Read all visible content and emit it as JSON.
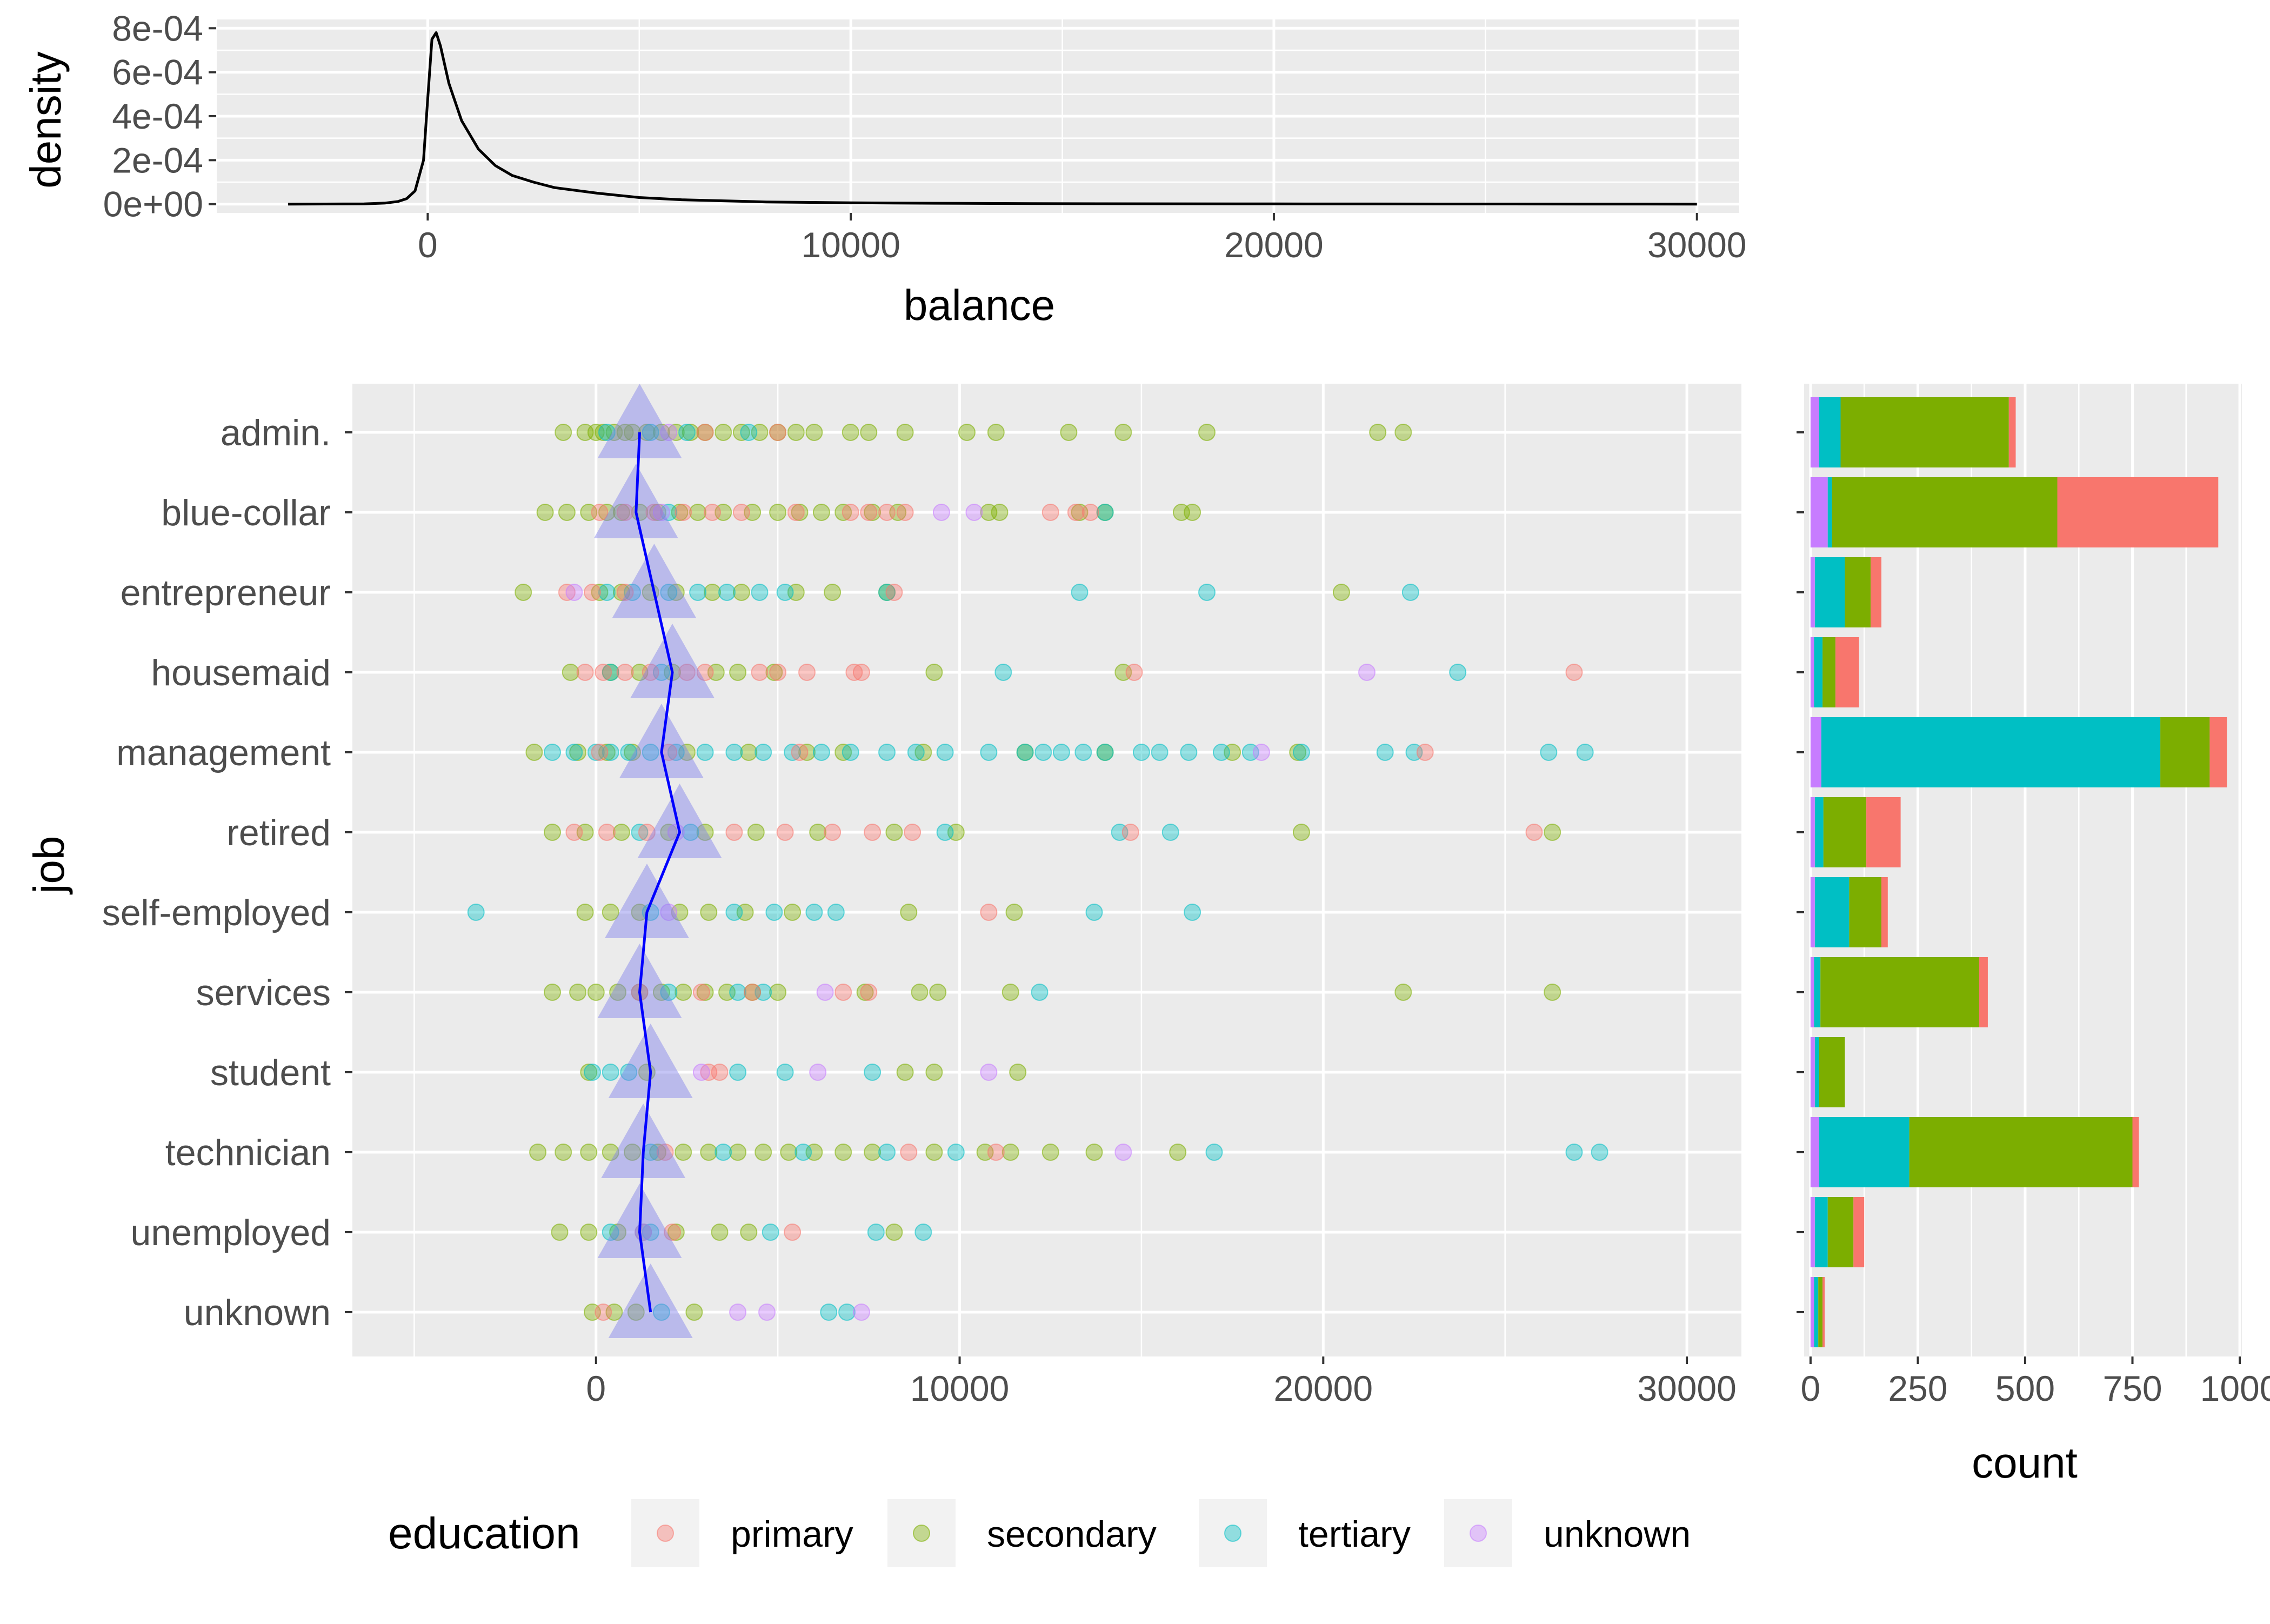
{
  "colors": {
    "panel_bg": "#EBEBEB",
    "grid": "#FFFFFF",
    "axis_text": "#4D4D4D",
    "title_text": "#000000",
    "mean_line": "#0000FF",
    "mean_marker": "#7F7FEA",
    "education": {
      "primary": "#F8766D",
      "secondary": "#7CAE00",
      "tertiary": "#00BFC4",
      "unknown": "#C77CFF"
    }
  },
  "chart_data": [
    {
      "id": "density",
      "type": "line",
      "xlabel": "balance",
      "ylabel": "density",
      "xlim": [
        -5000,
        31000
      ],
      "ylim": [
        0,
        0.0008
      ],
      "x_ticks": [
        0,
        10000,
        20000,
        30000
      ],
      "x_tick_labels": [
        "0",
        "10000",
        "20000",
        "30000"
      ],
      "y_ticks": [
        0,
        0.0002,
        0.0004,
        0.0006,
        0.0008
      ],
      "y_tick_labels": [
        "0e+00",
        "2e-04",
        "4e-04",
        "6e-04",
        "8e-04"
      ],
      "grid": true,
      "series": [
        {
          "x": [
            -3300,
            -1500,
            -1000,
            -700,
            -500,
            -300,
            -100,
            0,
            100,
            200,
            300,
            500,
            800,
            1200,
            1600,
            2000,
            2500,
            3000,
            4000,
            5000,
            6000,
            8000,
            10000,
            12000,
            15000,
            20000,
            25000,
            30000
          ],
          "y": [
            0,
            1e-06,
            5e-06,
            1.2e-05,
            2.5e-05,
            6e-05,
            0.0002,
            0.00048,
            0.00075,
            0.00078,
            0.00072,
            0.00055,
            0.00038,
            0.00025,
            0.000175,
            0.00013,
            0.0001,
            7.5e-05,
            5e-05,
            3e-05,
            2e-05,
            1e-05,
            6e-06,
            4e-06,
            2e-06,
            1e-06,
            5e-07,
            0
          ]
        }
      ]
    },
    {
      "id": "balance-by-job",
      "type": "scatter",
      "xlabel": "",
      "ylabel": "job",
      "xlim": [
        -6700,
        31500
      ],
      "x_ticks": [
        0,
        10000,
        20000,
        30000
      ],
      "x_tick_labels": [
        "0",
        "10000",
        "20000",
        "30000"
      ],
      "categories": [
        "admin.",
        "blue-collar",
        "entrepreneur",
        "housemaid",
        "management",
        "retired",
        "self-employed",
        "services",
        "student",
        "technician",
        "unemployed",
        "unknown"
      ],
      "grid": true,
      "legend": {
        "title": "education",
        "position": "bottom",
        "entries": [
          "primary",
          "secondary",
          "tertiary",
          "unknown"
        ]
      },
      "mean_balance": [
        1200,
        1100,
        1600,
        2100,
        1800,
        2300,
        1400,
        1200,
        1500,
        1300,
        1200,
        1500
      ],
      "points": {
        "admin.": {
          "primary": [
            3000,
            5000
          ],
          "secondary": [
            -900,
            -300,
            0,
            200,
            500,
            800,
            1000,
            1400,
            1800,
            2200,
            2600,
            3000,
            3500,
            4000,
            4500,
            5000,
            5500,
            6000,
            7000,
            7500,
            8500,
            10200,
            11000,
            13000,
            14500,
            16800,
            21500,
            22200
          ],
          "tertiary": [
            300,
            1500,
            2500,
            4200
          ],
          "unknown": [
            2000
          ]
        },
        "blue-collar": {
          "primary": [
            100,
            800,
            1600,
            2400,
            3200,
            4000,
            5500,
            7000,
            7500,
            8000,
            8500,
            12500,
            13200,
            13600
          ],
          "secondary": [
            -1400,
            -800,
            -200,
            300,
            700,
            1200,
            1700,
            2300,
            2800,
            3500,
            4300,
            5000,
            5600,
            6200,
            6800,
            7600,
            8300,
            10800,
            11100,
            13300,
            14000,
            16100,
            16400
          ],
          "tertiary": [
            2000,
            14000
          ],
          "unknown": [
            1800,
            9500,
            10400
          ]
        },
        "entrepreneur": {
          "primary": [
            -800,
            -100,
            800,
            8200
          ],
          "secondary": [
            -2000,
            100,
            700,
            1500,
            2200,
            3200,
            4000,
            5500,
            6500,
            8000,
            20500
          ],
          "tertiary": [
            300,
            1000,
            2000,
            2800,
            3600,
            4500,
            5200,
            8000,
            13300,
            16800,
            22400
          ],
          "unknown": [
            -600
          ]
        },
        "housemaid": {
          "primary": [
            -300,
            200,
            800,
            1500,
            2500,
            3000,
            4500,
            5000,
            5800,
            7100,
            7300,
            14800,
            26900
          ],
          "secondary": [
            -700,
            400,
            1200,
            2100,
            3300,
            3900,
            4900,
            9300,
            14500
          ],
          "tertiary": [
            400,
            1800,
            11200,
            23700
          ],
          "unknown": [
            21200
          ]
        },
        "management": {
          "primary": [
            100,
            2000,
            5600,
            22800
          ],
          "secondary": [
            -1700,
            -500,
            300,
            1000,
            2500,
            4200,
            5800,
            6800,
            9000,
            11800,
            14000,
            17500,
            19300
          ],
          "tertiary": [
            -1200,
            -600,
            0,
            400,
            900,
            1500,
            2200,
            3000,
            3800,
            4600,
            5400,
            6200,
            7000,
            8000,
            8800,
            9600,
            10800,
            11800,
            12300,
            12800,
            13400,
            14000,
            15000,
            15500,
            16300,
            17200,
            18000,
            19400,
            21700,
            22500,
            26200,
            27200
          ],
          "unknown": [
            18300
          ]
        },
        "retired": {
          "primary": [
            -600,
            300,
            1400,
            3800,
            5200,
            6500,
            7600,
            8700,
            14700,
            25800
          ],
          "secondary": [
            -1200,
            -300,
            700,
            2000,
            3000,
            4400,
            6100,
            8200,
            9900,
            19400,
            26300
          ],
          "tertiary": [
            1200,
            2600,
            9600,
            14400,
            15800
          ],
          "unknown": [
            2200
          ]
        },
        "self-employed": {
          "primary": [
            10800
          ],
          "secondary": [
            -300,
            400,
            1200,
            2300,
            3100,
            4100,
            5400,
            8600,
            11500
          ],
          "tertiary": [
            -3300,
            1500,
            3800,
            4900,
            6000,
            6600,
            13700,
            16400
          ],
          "unknown": [
            2000
          ]
        },
        "services": {
          "primary": [
            1200,
            2900,
            4300,
            6800,
            7500
          ],
          "secondary": [
            -1200,
            -500,
            0,
            600,
            1200,
            1800,
            2400,
            3000,
            3600,
            4300,
            5000,
            7400,
            8900,
            9400,
            11400,
            22200,
            26300
          ],
          "tertiary": [
            2000,
            3900,
            4600,
            12200
          ],
          "unknown": [
            6300
          ]
        },
        "student": {
          "primary": [
            3100,
            3400
          ],
          "secondary": [
            -200,
            1400,
            8500,
            9300,
            11600
          ],
          "tertiary": [
            -100,
            400,
            900,
            3900,
            5200,
            7600
          ],
          "unknown": [
            2900,
            6100,
            10800
          ]
        },
        "technician": {
          "primary": [
            1900,
            8600,
            11000
          ],
          "secondary": [
            -1600,
            -900,
            -200,
            400,
            1000,
            1700,
            2400,
            3100,
            3900,
            4600,
            5300,
            6000,
            6800,
            7600,
            9300,
            10700,
            11400,
            12500,
            13700,
            16000
          ],
          "tertiary": [
            1500,
            3500,
            5700,
            8000,
            9900,
            17000,
            26900,
            27600
          ],
          "unknown": [
            14500
          ]
        },
        "unemployed": {
          "primary": [
            2100,
            5400
          ],
          "secondary": [
            -1000,
            -200,
            600,
            1300,
            2200,
            3400,
            4200,
            8200
          ],
          "tertiary": [
            400,
            1500,
            4800,
            7700,
            9000
          ],
          "unknown": [
            1300
          ]
        },
        "unknown": {
          "primary": [
            200
          ],
          "secondary": [
            -100,
            500,
            1100,
            2700
          ],
          "tertiary": [
            1800,
            6400,
            6900
          ],
          "unknown": [
            3900,
            4700,
            7300
          ]
        }
      }
    },
    {
      "id": "job-counts",
      "type": "bar",
      "orientation": "horizontal",
      "stacked": true,
      "xlabel": "count",
      "ylabel": "",
      "xlim": [
        -15,
        1005
      ],
      "x_ticks": [
        0,
        250,
        500,
        750,
        1000
      ],
      "x_tick_labels": [
        "0",
        "250",
        "500",
        "750",
        "1000"
      ],
      "categories": [
        "admin.",
        "blue-collar",
        "entrepreneur",
        "housemaid",
        "management",
        "retired",
        "self-employed",
        "services",
        "student",
        "technician",
        "unemployed",
        "unknown"
      ],
      "stack_order": [
        "unknown",
        "tertiary",
        "secondary",
        "primary"
      ],
      "series": [
        {
          "name": "unknown",
          "values": [
            20,
            40,
            10,
            8,
            25,
            10,
            10,
            8,
            10,
            20,
            10,
            8
          ]
        },
        {
          "name": "tertiary",
          "values": [
            50,
            10,
            70,
            20,
            790,
            20,
            80,
            15,
            10,
            210,
            30,
            10
          ]
        },
        {
          "name": "secondary",
          "values": [
            392,
            525,
            60,
            30,
            115,
            100,
            75,
            370,
            60,
            520,
            60,
            10
          ]
        },
        {
          "name": "primary",
          "values": [
            16,
            375,
            25,
            55,
            40,
            80,
            15,
            20,
            0,
            15,
            25,
            5
          ]
        }
      ]
    }
  ]
}
